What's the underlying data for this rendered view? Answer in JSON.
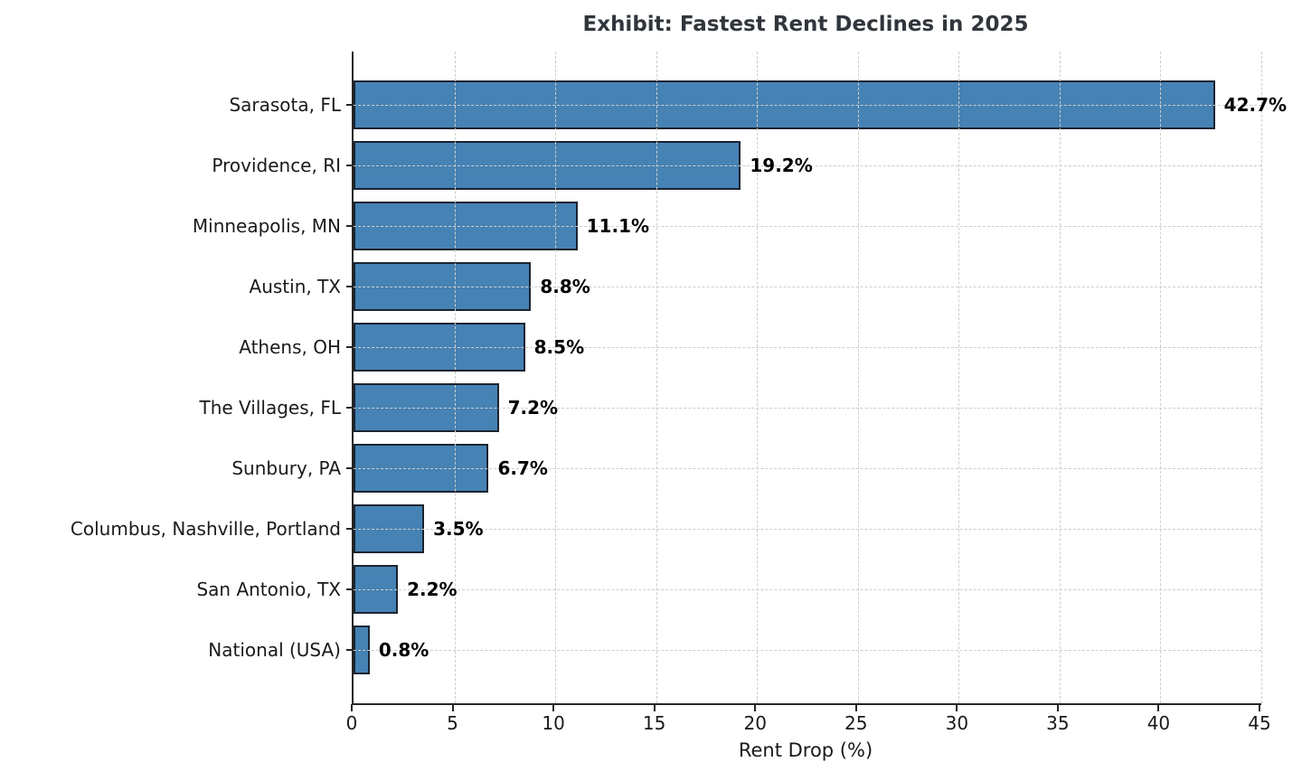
{
  "chart_data": {
    "type": "bar",
    "orientation": "horizontal",
    "title": "Exhibit: Fastest Rent Declines in 2025",
    "xlabel": "Rent Drop (%)",
    "ylabel": "",
    "categories": [
      "Sarasota, FL",
      "Providence, RI",
      "Minneapolis, MN",
      "Austin, TX",
      "Athens, OH",
      "The Villages, FL",
      "Sunbury, PA",
      "Columbus, Nashville, Portland",
      "San Antonio, TX",
      "National (USA)"
    ],
    "values": [
      42.7,
      19.2,
      11.1,
      8.8,
      8.5,
      7.2,
      6.7,
      3.5,
      2.2,
      0.8
    ],
    "value_labels": [
      "42.7%",
      "19.2%",
      "11.1%",
      "8.8%",
      "8.5%",
      "7.2%",
      "6.7%",
      "3.5%",
      "2.2%",
      "0.8%"
    ],
    "xlim": [
      0,
      45
    ],
    "xticks": [
      0,
      5,
      10,
      15,
      20,
      25,
      30,
      35,
      40,
      45
    ],
    "grid": "dashed, light gray, both axes, drawn above bars",
    "legend": "none",
    "colors": {
      "bar_fill": "#4682B4",
      "bar_edge": "#1b2430",
      "grid": "#cdcdcd",
      "spine": "#262626",
      "title_text": "#31363c",
      "tick_text": "#1a1a1a",
      "value_label_text": "#000000",
      "background": "#ffffff"
    }
  }
}
